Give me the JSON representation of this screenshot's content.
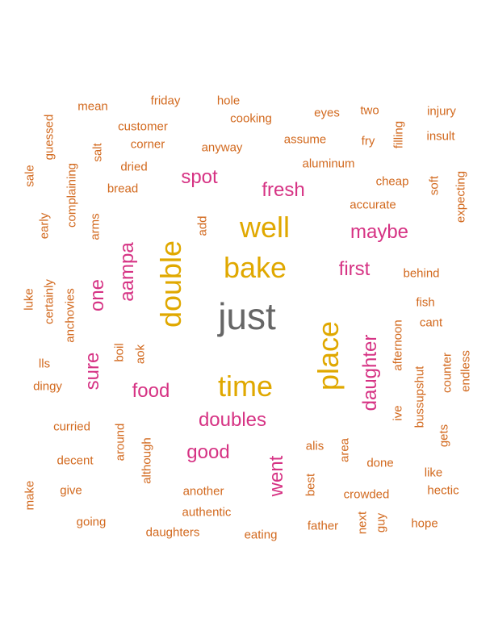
{
  "colors": {
    "gray": "#666666",
    "gold": "#e0a800",
    "magenta": "#d63384",
    "orange": "#d2691e"
  },
  "words": [
    {
      "text": "just",
      "tier": "gray",
      "size": 46
    },
    {
      "text": "well",
      "tier": "gold",
      "size": 36
    },
    {
      "text": "bake",
      "tier": "gold",
      "size": 36
    },
    {
      "text": "double",
      "tier": "gold",
      "size": 36
    },
    {
      "text": "place",
      "tier": "gold",
      "size": 36
    },
    {
      "text": "time",
      "tier": "gold",
      "size": 36
    },
    {
      "text": "spot",
      "tier": "magenta",
      "size": 24
    },
    {
      "text": "fresh",
      "tier": "magenta",
      "size": 24
    },
    {
      "text": "maybe",
      "tier": "magenta",
      "size": 24
    },
    {
      "text": "first",
      "tier": "magenta",
      "size": 24
    },
    {
      "text": "aampa",
      "tier": "magenta",
      "size": 24
    },
    {
      "text": "one",
      "tier": "magenta",
      "size": 24
    },
    {
      "text": "daughter",
      "tier": "magenta",
      "size": 24
    },
    {
      "text": "sure",
      "tier": "magenta",
      "size": 24
    },
    {
      "text": "food",
      "tier": "magenta",
      "size": 24
    },
    {
      "text": "doubles",
      "tier": "magenta",
      "size": 24
    },
    {
      "text": "good",
      "tier": "magenta",
      "size": 24
    },
    {
      "text": "went",
      "tier": "magenta",
      "size": 24
    },
    {
      "text": "mean",
      "tier": "orange",
      "size": 15
    },
    {
      "text": "friday",
      "tier": "orange",
      "size": 15
    },
    {
      "text": "hole",
      "tier": "orange",
      "size": 15
    },
    {
      "text": "eyes",
      "tier": "orange",
      "size": 15
    },
    {
      "text": "two",
      "tier": "orange",
      "size": 15
    },
    {
      "text": "injury",
      "tier": "orange",
      "size": 15
    },
    {
      "text": "cooking",
      "tier": "orange",
      "size": 15
    },
    {
      "text": "customer",
      "tier": "orange",
      "size": 15
    },
    {
      "text": "guessed",
      "tier": "orange",
      "size": 15
    },
    {
      "text": "assume",
      "tier": "orange",
      "size": 15
    },
    {
      "text": "fry",
      "tier": "orange",
      "size": 15
    },
    {
      "text": "filling",
      "tier": "orange",
      "size": 15
    },
    {
      "text": "insult",
      "tier": "orange",
      "size": 15
    },
    {
      "text": "corner",
      "tier": "orange",
      "size": 15
    },
    {
      "text": "anyway",
      "tier": "orange",
      "size": 15
    },
    {
      "text": "salt",
      "tier": "orange",
      "size": 15
    },
    {
      "text": "aluminum",
      "tier": "orange",
      "size": 15
    },
    {
      "text": "sale",
      "tier": "orange",
      "size": 15
    },
    {
      "text": "dried",
      "tier": "orange",
      "size": 15
    },
    {
      "text": "complaining",
      "tier": "orange",
      "size": 15
    },
    {
      "text": "cheap",
      "tier": "orange",
      "size": 15
    },
    {
      "text": "soft",
      "tier": "orange",
      "size": 15
    },
    {
      "text": "expecting",
      "tier": "orange",
      "size": 15
    },
    {
      "text": "bread",
      "tier": "orange",
      "size": 15
    },
    {
      "text": "accurate",
      "tier": "orange",
      "size": 15
    },
    {
      "text": "early",
      "tier": "orange",
      "size": 15
    },
    {
      "text": "arms",
      "tier": "orange",
      "size": 15
    },
    {
      "text": "add",
      "tier": "orange",
      "size": 15
    },
    {
      "text": "behind",
      "tier": "orange",
      "size": 15
    },
    {
      "text": "luke",
      "tier": "orange",
      "size": 15
    },
    {
      "text": "certainly",
      "tier": "orange",
      "size": 15
    },
    {
      "text": "anchovies",
      "tier": "orange",
      "size": 15
    },
    {
      "text": "fish",
      "tier": "orange",
      "size": 15
    },
    {
      "text": "afternoon",
      "tier": "orange",
      "size": 15
    },
    {
      "text": "cant",
      "tier": "orange",
      "size": 15
    },
    {
      "text": "boil",
      "tier": "orange",
      "size": 15
    },
    {
      "text": "aok",
      "tier": "orange",
      "size": 15
    },
    {
      "text": "lls",
      "tier": "orange",
      "size": 15
    },
    {
      "text": "counter",
      "tier": "orange",
      "size": 15
    },
    {
      "text": "endless",
      "tier": "orange",
      "size": 15
    },
    {
      "text": "dingy",
      "tier": "orange",
      "size": 15
    },
    {
      "text": "bussupshut",
      "tier": "orange",
      "size": 15
    },
    {
      "text": "ive",
      "tier": "orange",
      "size": 15
    },
    {
      "text": "curried",
      "tier": "orange",
      "size": 15
    },
    {
      "text": "around",
      "tier": "orange",
      "size": 15
    },
    {
      "text": "gets",
      "tier": "orange",
      "size": 15
    },
    {
      "text": "although",
      "tier": "orange",
      "size": 15
    },
    {
      "text": "alis",
      "tier": "orange",
      "size": 15
    },
    {
      "text": "area",
      "tier": "orange",
      "size": 15
    },
    {
      "text": "decent",
      "tier": "orange",
      "size": 15
    },
    {
      "text": "done",
      "tier": "orange",
      "size": 15
    },
    {
      "text": "like",
      "tier": "orange",
      "size": 15
    },
    {
      "text": "make",
      "tier": "orange",
      "size": 15
    },
    {
      "text": "give",
      "tier": "orange",
      "size": 15
    },
    {
      "text": "another",
      "tier": "orange",
      "size": 15
    },
    {
      "text": "best",
      "tier": "orange",
      "size": 15
    },
    {
      "text": "crowded",
      "tier": "orange",
      "size": 15
    },
    {
      "text": "hectic",
      "tier": "orange",
      "size": 15
    },
    {
      "text": "authentic",
      "tier": "orange",
      "size": 15
    },
    {
      "text": "going",
      "tier": "orange",
      "size": 15
    },
    {
      "text": "next",
      "tier": "orange",
      "size": 15
    },
    {
      "text": "guy",
      "tier": "orange",
      "size": 15
    },
    {
      "text": "hope",
      "tier": "orange",
      "size": 15
    },
    {
      "text": "father",
      "tier": "orange",
      "size": 15
    },
    {
      "text": "daughters",
      "tier": "orange",
      "size": 15
    },
    {
      "text": "eating",
      "tier": "orange",
      "size": 15
    }
  ]
}
